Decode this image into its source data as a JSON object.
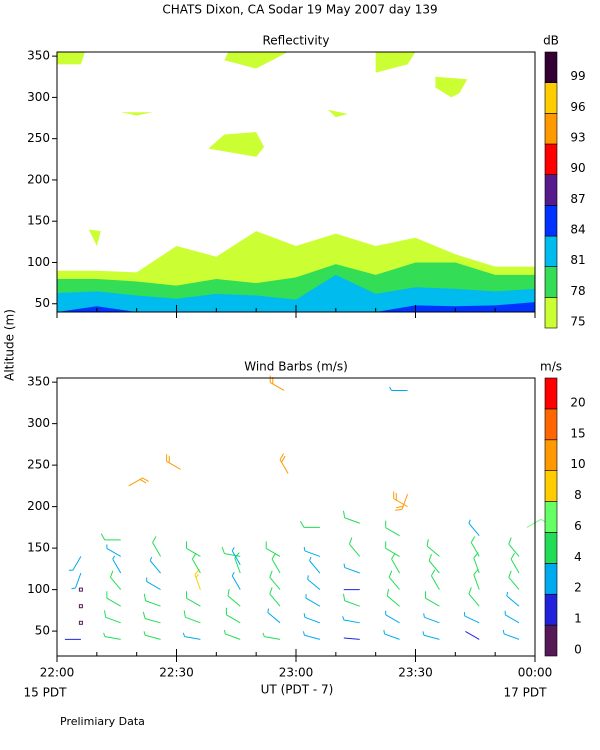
{
  "title": "CHATS Dixon, CA  Sodar  19 May 2007  day 139",
  "y_label": "Altitude (m)",
  "x_label": "UT  (PDT - 7)",
  "date_left": "15 PDT",
  "date_right": "17 PDT",
  "note": "Prelimiary Data",
  "x_axis": {
    "xlim": [
      0,
      120
    ],
    "xticks": [
      {
        "value": 0,
        "label": "22:00"
      },
      {
        "value": 30,
        "label": "22:30"
      },
      {
        "value": 60,
        "label": "23:00"
      },
      {
        "value": 90,
        "label": "23:30"
      },
      {
        "value": 120,
        "label": "00:00"
      }
    ],
    "xminorticks": [
      10,
      20,
      40,
      50,
      70,
      80,
      100,
      110
    ]
  },
  "chart_data": [
    {
      "type": "contour",
      "title": "Reflectivity",
      "colorbar_label": "dB",
      "ylim": [
        40,
        355
      ],
      "yticks": [
        50,
        100,
        150,
        200,
        250,
        300,
        350
      ],
      "levels": [
        75,
        78,
        81,
        84,
        87,
        90,
        93,
        96,
        99
      ],
      "colors": [
        "#ccff33",
        "#33dd55",
        "#00bbee",
        "#0033ff",
        "#551a8b",
        "#ff0000",
        "#ff9900",
        "#ffcc00",
        "#330033"
      ],
      "x": [
        0,
        10,
        20,
        30,
        40,
        50,
        60,
        70,
        80,
        90,
        100,
        110,
        120
      ],
      "layers": [
        {
          "level": 75,
          "tops": [
            90,
            90,
            88,
            120,
            107,
            138,
            120,
            135,
            120,
            130,
            110,
            95,
            95
          ]
        },
        {
          "level": 78,
          "tops": [
            80,
            80,
            77,
            72,
            80,
            75,
            82,
            98,
            85,
            100,
            100,
            85,
            85
          ]
        },
        {
          "level": 81,
          "tops": [
            63,
            65,
            60,
            56,
            62,
            60,
            55,
            85,
            62,
            70,
            68,
            65,
            68
          ]
        },
        {
          "level": 84,
          "tops": [
            40,
            47,
            40,
            40,
            40,
            40,
            40,
            40,
            40,
            48,
            47,
            48,
            52
          ]
        }
      ],
      "patches": [
        {
          "level": 75,
          "x": [
            0,
            7,
            6,
            0
          ],
          "y": [
            355,
            355,
            340,
            340
          ]
        },
        {
          "level": 75,
          "x": [
            43,
            58,
            50,
            42
          ],
          "y": [
            355,
            355,
            335,
            345
          ]
        },
        {
          "level": 75,
          "x": [
            80,
            90,
            88,
            80
          ],
          "y": [
            355,
            355,
            340,
            330
          ]
        },
        {
          "level": 75,
          "x": [
            95,
            103,
            101,
            99,
            95
          ],
          "y": [
            325,
            322,
            305,
            300,
            312
          ]
        },
        {
          "level": 75,
          "x": [
            16,
            24,
            20
          ],
          "y": [
            282,
            282,
            278
          ]
        },
        {
          "level": 75,
          "x": [
            42,
            50,
            52,
            50,
            38
          ],
          "y": [
            255,
            258,
            240,
            228,
            238
          ]
        },
        {
          "level": 75,
          "x": [
            68,
            73,
            70
          ],
          "y": [
            285,
            280,
            276
          ]
        },
        {
          "level": 75,
          "x": [
            8,
            11,
            10
          ],
          "y": [
            140,
            138,
            120
          ]
        }
      ]
    },
    {
      "type": "barb",
      "title": "Wind Barbs (m/s)",
      "colorbar_label": "m/s",
      "ylim": [
        20,
        355
      ],
      "yticks": [
        50,
        100,
        150,
        200,
        250,
        300,
        350
      ],
      "levels": [
        0,
        1,
        2,
        4,
        6,
        8,
        10,
        15,
        20
      ],
      "colors": [
        "#551a55",
        "#2222dd",
        "#00aaee",
        "#22dd55",
        "#66ff66",
        "#ffcc00",
        "#ff9900",
        "#ff6600",
        "#ff0000"
      ],
      "x": [
        6,
        16,
        26,
        36,
        46,
        56,
        66,
        76,
        86,
        96,
        106,
        116,
        6,
        16,
        26,
        36,
        46,
        56,
        66,
        76,
        86,
        96,
        106,
        116,
        6,
        16,
        26,
        36,
        46,
        56,
        66,
        76,
        86,
        96,
        106,
        116,
        6,
        16,
        26,
        36,
        46,
        56,
        66,
        76,
        86,
        96,
        106,
        116,
        6,
        16,
        26,
        36,
        46,
        56,
        66,
        76,
        86,
        96,
        106,
        116,
        6,
        16,
        26,
        36,
        46,
        56,
        66,
        76,
        86,
        96,
        106,
        116,
        16,
        18,
        31,
        46,
        57,
        58,
        66,
        76,
        86,
        88,
        88,
        88,
        106,
        118
      ],
      "altitude": [
        40,
        40,
        40,
        40,
        40,
        40,
        40,
        40,
        40,
        40,
        40,
        40,
        60,
        60,
        60,
        60,
        60,
        60,
        60,
        60,
        60,
        60,
        60,
        60,
        80,
        80,
        80,
        80,
        80,
        80,
        80,
        80,
        80,
        80,
        80,
        80,
        100,
        100,
        100,
        100,
        100,
        100,
        100,
        100,
        100,
        100,
        100,
        100,
        120,
        120,
        120,
        120,
        120,
        120,
        120,
        120,
        120,
        120,
        120,
        120,
        140,
        140,
        140,
        140,
        140,
        140,
        140,
        140,
        140,
        140,
        140,
        140,
        160,
        225,
        245,
        130,
        340,
        240,
        175,
        180,
        165,
        340,
        215,
        200,
        165,
        175
      ],
      "speed": [
        1.5,
        4,
        4,
        3,
        4,
        4,
        3,
        1.5,
        3,
        3,
        1.5,
        3,
        0.5,
        5,
        5,
        5,
        5,
        3,
        3,
        3,
        3,
        3,
        3,
        3,
        0.5,
        5,
        5,
        5,
        5,
        5,
        3,
        5,
        5,
        5,
        5,
        3,
        0.5,
        5,
        3,
        9,
        3,
        5,
        3,
        1.5,
        5,
        5,
        5,
        5,
        3,
        3,
        3,
        5,
        5,
        5,
        3,
        3,
        5,
        5,
        5,
        5,
        3,
        3,
        5,
        5,
        5,
        5,
        3,
        5,
        5,
        5,
        5,
        5,
        5,
        11,
        11,
        3,
        11,
        10,
        5,
        5,
        5,
        3,
        11,
        11,
        3,
        7
      ],
      "direction": [
        270,
        280,
        285,
        280,
        290,
        280,
        285,
        275,
        290,
        285,
        300,
        290,
        0,
        290,
        285,
        290,
        300,
        310,
        290,
        280,
        300,
        290,
        295,
        300,
        0,
        300,
        290,
        300,
        310,
        320,
        300,
        290,
        310,
        300,
        320,
        310,
        0,
        320,
        300,
        340,
        330,
        320,
        310,
        270,
        320,
        330,
        340,
        320,
        200,
        330,
        320,
        330,
        340,
        330,
        320,
        290,
        330,
        320,
        340,
        330,
        210,
        300,
        330,
        300,
        280,
        300,
        290,
        320,
        300,
        310,
        330,
        320,
        270,
        60,
        300,
        330,
        300,
        330,
        270,
        290,
        300,
        270,
        200,
        300,
        320,
        60
      ]
    }
  ]
}
